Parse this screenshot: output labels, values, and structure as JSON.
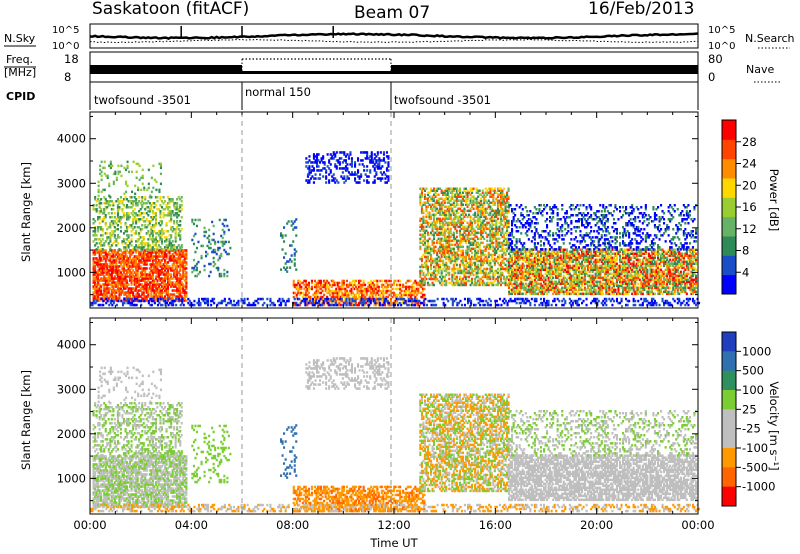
{
  "header": {
    "station": "Saskatoon (fitACF)",
    "beam": "Beam 07",
    "date": "16/Feb/2013"
  },
  "noise_panel": {
    "left_label": "N.Sky",
    "right_label": "N.Search",
    "left_ticks": [
      "10^5",
      "10^0"
    ],
    "right_ticks": [
      "10^5",
      "10^0"
    ]
  },
  "freq_panel": {
    "left_label_1": "Freq.",
    "left_label_2": "[MHz]",
    "right_label": "Nave",
    "left_ticks": [
      "18",
      "8"
    ],
    "right_ticks": [
      "80",
      "0"
    ]
  },
  "cpid": {
    "label": "CPID",
    "segments": [
      {
        "start": 0,
        "end": 6,
        "text": "twofsound -3501"
      },
      {
        "start": 6,
        "end": 12,
        "text": "normal 150"
      },
      {
        "start": 12,
        "end": 24,
        "text": "twofsound -3501"
      }
    ]
  },
  "colors": {
    "power_scale": [
      "#0000ff",
      "#1a4dc8",
      "#2e8b57",
      "#66b266",
      "#9acd32",
      "#ffd700",
      "#ff8c00",
      "#ff4500",
      "#ff0000"
    ],
    "velocity_scale": [
      "#1f3fbf",
      "#3070b0",
      "#2f8f5f",
      "#7acd32",
      "#bfbfbf",
      "#bfbfbf",
      "#ff9900",
      "#ff6600",
      "#ff0000"
    ]
  },
  "chart_data": [
    {
      "type": "heatmap",
      "title": "",
      "xlabel": "Time UT",
      "ylabel": "Slant Range [km]",
      "x_ticks": [
        "00:00",
        "04:00",
        "08:00",
        "12:00",
        "16:00",
        "20:00",
        "00:00"
      ],
      "xlim": [
        0,
        24
      ],
      "ylim": [
        200,
        4600
      ],
      "y_ticks": [
        1000,
        2000,
        3000,
        4000
      ],
      "colorbar": {
        "label": "Power [dB]",
        "ticks": [
          "4",
          "8",
          "12",
          "16",
          "20",
          "24",
          "28"
        ],
        "range": [
          0,
          30
        ]
      },
      "vertical_markers": [
        6,
        12
      ]
    },
    {
      "type": "heatmap",
      "title": "",
      "xlabel": "Time UT",
      "ylabel": "Slant Range [km]",
      "x_ticks": [
        "00:00",
        "04:00",
        "08:00",
        "12:00",
        "16:00",
        "20:00",
        "00:00"
      ],
      "xlim": [
        0,
        24
      ],
      "ylim": [
        200,
        4600
      ],
      "y_ticks": [
        1000,
        2000,
        3000,
        4000
      ],
      "colorbar": {
        "label": "Velocity [m s⁻¹]",
        "ticks": [
          "1000",
          "500",
          "100",
          "25",
          "-25",
          "-100",
          "-500",
          "-1000"
        ]
      },
      "vertical_markers": [
        6,
        12
      ]
    }
  ]
}
